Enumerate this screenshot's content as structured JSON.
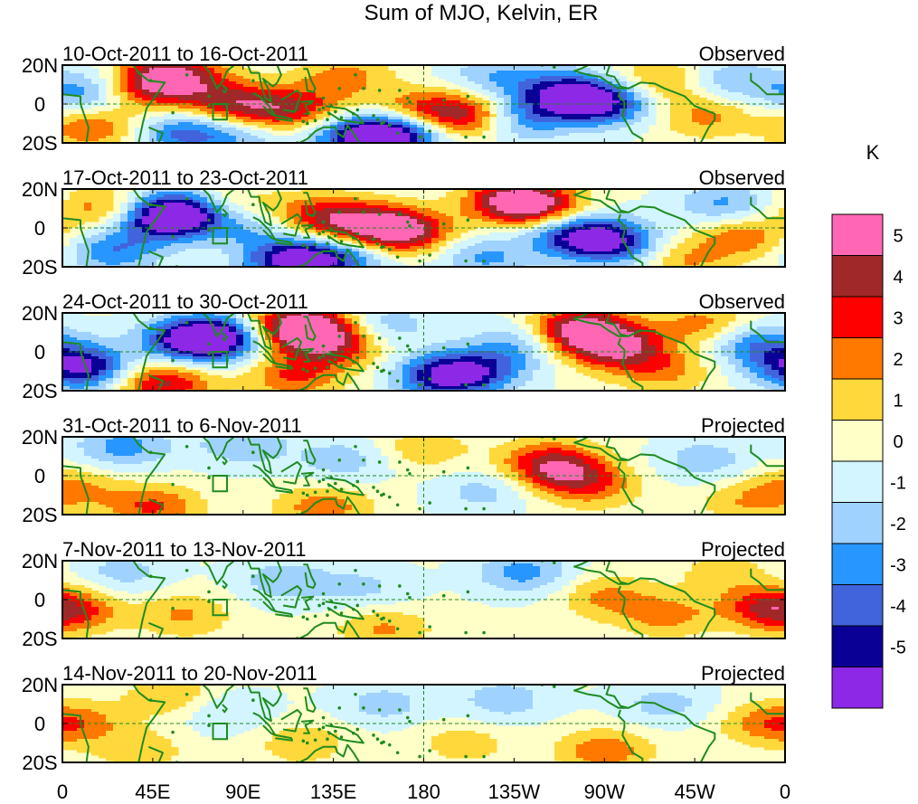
{
  "chart_data": {
    "type": "heatmap",
    "title": "Sum of MJO, Kelvin, ER",
    "xlabel": "",
    "ylabel": "",
    "colorbar_unit": "K",
    "x_ticks": [
      "0",
      "45E",
      "90E",
      "135E",
      "180",
      "135W",
      "90W",
      "45W",
      "0"
    ],
    "x_range_deg": [
      0,
      360
    ],
    "y_ticks": [
      "20N",
      "0",
      "20S"
    ],
    "y_range_deg": [
      -20,
      20
    ],
    "levels": [
      "5",
      "4",
      "3",
      "2",
      "1",
      "0",
      "-1",
      "-2",
      "-3",
      "-4",
      "-5"
    ],
    "colors": [
      "#ff66b3",
      "#a02828",
      "#ff0000",
      "#ff7800",
      "#ffd83c",
      "#ffffc8",
      "#d2f5ff",
      "#a0d2ff",
      "#2896ff",
      "#4164dc",
      "#0a0096",
      "#8c28e6"
    ],
    "panels": [
      {
        "period": "10-Oct-2011 to 16-Oct-2011",
        "status": "Observed",
        "blobs": [
          {
            "lon": 55,
            "lat": 15,
            "value": 4.6
          },
          {
            "lon": 40,
            "lat": 8,
            "value": 3.0
          },
          {
            "lon": 80,
            "lat": 2,
            "value": 3.2
          },
          {
            "lon": 100,
            "lat": -4,
            "value": 2.8
          },
          {
            "lon": 120,
            "lat": -2,
            "value": 2.4
          },
          {
            "lon": 200,
            "lat": -6,
            "value": 4.4
          },
          {
            "lon": 175,
            "lat": -4,
            "value": 3.0
          },
          {
            "lon": 15,
            "lat": -12,
            "value": 2.8
          },
          {
            "lon": 250,
            "lat": 5,
            "value": -5.0
          },
          {
            "lon": 270,
            "lat": 0,
            "value": -4.4
          },
          {
            "lon": 228,
            "lat": -8,
            "value": -2.8
          },
          {
            "lon": 150,
            "lat": -17,
            "value": -5.6
          },
          {
            "lon": 170,
            "lat": -14,
            "value": -4.5
          },
          {
            "lon": 60,
            "lat": -15,
            "value": -3.4
          },
          {
            "lon": 12,
            "lat": 6,
            "value": -3.0
          },
          {
            "lon": 300,
            "lat": 12,
            "value": 2.4
          },
          {
            "lon": 320,
            "lat": -6,
            "value": 2.2
          },
          {
            "lon": 140,
            "lat": 14,
            "value": 2.2
          },
          {
            "lon": 215,
            "lat": 14,
            "value": -2.0
          },
          {
            "lon": 90,
            "lat": -16,
            "value": -2.0
          },
          {
            "lon": 330,
            "lat": 12,
            "value": -2.2
          }
        ]
      },
      {
        "period": "17-Oct-2011 to 23-Oct-2011",
        "status": "Observed",
        "blobs": [
          {
            "lon": 60,
            "lat": 8,
            "value": -5.8
          },
          {
            "lon": 48,
            "lat": 4,
            "value": -3.5
          },
          {
            "lon": 170,
            "lat": -2,
            "value": 5.0
          },
          {
            "lon": 150,
            "lat": 2,
            "value": 3.6
          },
          {
            "lon": 125,
            "lat": 6,
            "value": 3.2
          },
          {
            "lon": 225,
            "lat": 14,
            "value": 5.0
          },
          {
            "lon": 240,
            "lat": 10,
            "value": 3.0
          },
          {
            "lon": 255,
            "lat": -3,
            "value": -4.5
          },
          {
            "lon": 275,
            "lat": -8,
            "value": -4.2
          },
          {
            "lon": 115,
            "lat": -17,
            "value": -5.6
          },
          {
            "lon": 140,
            "lat": -15,
            "value": -3.0
          },
          {
            "lon": 25,
            "lat": -12,
            "value": -3.0
          },
          {
            "lon": 20,
            "lat": 10,
            "value": 2.6
          },
          {
            "lon": 80,
            "lat": 12,
            "value": 2.0
          },
          {
            "lon": 340,
            "lat": -4,
            "value": 2.6
          },
          {
            "lon": 330,
            "lat": 12,
            "value": -2.5
          },
          {
            "lon": 210,
            "lat": -15,
            "value": -2.4
          },
          {
            "lon": 310,
            "lat": -16,
            "value": 2.0
          },
          {
            "lon": 95,
            "lat": 0,
            "value": -2.0
          }
        ]
      },
      {
        "period": "24-Oct-2011 to 30-Oct-2011",
        "status": "Observed",
        "blobs": [
          {
            "lon": 65,
            "lat": 6,
            "value": -6.2
          },
          {
            "lon": 85,
            "lat": 8,
            "value": -4.0
          },
          {
            "lon": 10,
            "lat": -8,
            "value": -5.5
          },
          {
            "lon": 125,
            "lat": 12,
            "value": 4.5
          },
          {
            "lon": 110,
            "lat": 12,
            "value": 3.8
          },
          {
            "lon": 135,
            "lat": 2,
            "value": 3.0
          },
          {
            "lon": 255,
            "lat": 12,
            "value": 4.8
          },
          {
            "lon": 270,
            "lat": 6,
            "value": 3.4
          },
          {
            "lon": 280,
            "lat": 0,
            "value": 2.6
          },
          {
            "lon": 50,
            "lat": -16,
            "value": 4.2
          },
          {
            "lon": 190,
            "lat": -13,
            "value": -5.0
          },
          {
            "lon": 210,
            "lat": -8,
            "value": -3.0
          },
          {
            "lon": 115,
            "lat": -13,
            "value": 2.8
          },
          {
            "lon": 320,
            "lat": 14,
            "value": 2.4
          },
          {
            "lon": 345,
            "lat": 4,
            "value": -3.0
          },
          {
            "lon": 300,
            "lat": -10,
            "value": 2.0
          },
          {
            "lon": 160,
            "lat": 14,
            "value": -2.0
          },
          {
            "lon": 230,
            "lat": 6,
            "value": -2.2
          }
        ]
      },
      {
        "period": "31-Oct-2011 to 6-Nov-2011",
        "status": "Projected",
        "blobs": [
          {
            "lon": 250,
            "lat": 2,
            "value": 3.3
          },
          {
            "lon": 240,
            "lat": 8,
            "value": 2.4
          },
          {
            "lon": 265,
            "lat": -6,
            "value": 2.0
          },
          {
            "lon": 45,
            "lat": -16,
            "value": 3.0
          },
          {
            "lon": 130,
            "lat": -16,
            "value": 2.5
          },
          {
            "lon": 30,
            "lat": 15,
            "value": -2.6
          },
          {
            "lon": 90,
            "lat": 16,
            "value": -2.0
          },
          {
            "lon": 140,
            "lat": 8,
            "value": -1.8
          },
          {
            "lon": 210,
            "lat": -8,
            "value": -1.6
          },
          {
            "lon": 320,
            "lat": 8,
            "value": -1.8
          },
          {
            "lon": 5,
            "lat": -6,
            "value": 2.0
          },
          {
            "lon": 180,
            "lat": 14,
            "value": 1.6
          },
          {
            "lon": 340,
            "lat": -14,
            "value": 1.6
          }
        ]
      },
      {
        "period": "7-Nov-2011 to 13-Nov-2011",
        "status": "Projected",
        "blobs": [
          {
            "lon": 5,
            "lat": -6,
            "value": 2.6
          },
          {
            "lon": 350,
            "lat": -4,
            "value": 2.8
          },
          {
            "lon": 300,
            "lat": -8,
            "value": 2.2
          },
          {
            "lon": 270,
            "lat": 2,
            "value": 2.0
          },
          {
            "lon": 60,
            "lat": -8,
            "value": 2.0
          },
          {
            "lon": 160,
            "lat": -15,
            "value": 2.0
          },
          {
            "lon": 230,
            "lat": 14,
            "value": -2.6
          },
          {
            "lon": 110,
            "lat": 10,
            "value": -1.8
          },
          {
            "lon": 30,
            "lat": 14,
            "value": -1.6
          },
          {
            "lon": 150,
            "lat": 6,
            "value": -1.4
          },
          {
            "lon": 330,
            "lat": 14,
            "value": 1.4
          }
        ]
      },
      {
        "period": "14-Nov-2011 to 20-Nov-2011",
        "status": "Projected",
        "blobs": [
          {
            "lon": 270,
            "lat": -14,
            "value": 2.6
          },
          {
            "lon": 10,
            "lat": 0,
            "value": 1.8
          },
          {
            "lon": 350,
            "lat": 0,
            "value": 2.0
          },
          {
            "lon": 55,
            "lat": 14,
            "value": 1.8
          },
          {
            "lon": 120,
            "lat": -10,
            "value": 1.6
          },
          {
            "lon": 220,
            "lat": 12,
            "value": -1.8
          },
          {
            "lon": 160,
            "lat": 10,
            "value": -1.6
          },
          {
            "lon": 80,
            "lat": 6,
            "value": -1.4
          },
          {
            "lon": 300,
            "lat": 10,
            "value": -1.6
          },
          {
            "lon": 200,
            "lat": -10,
            "value": 1.4
          },
          {
            "lon": 40,
            "lat": -14,
            "value": 1.4
          }
        ]
      }
    ]
  }
}
